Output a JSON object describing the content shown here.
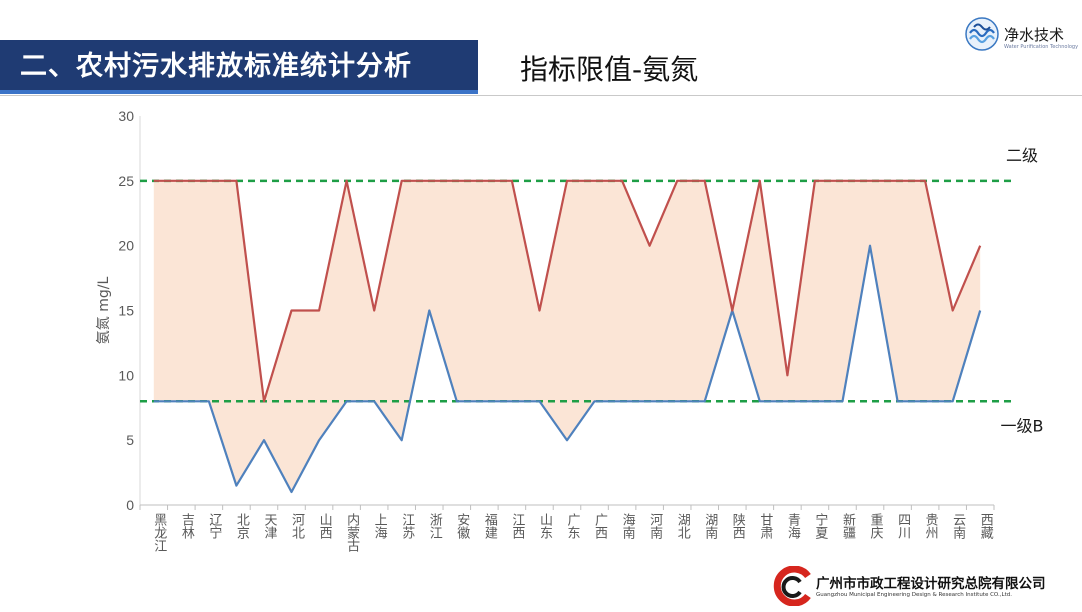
{
  "header": {
    "title": "二、农村污水排放标准统计分析",
    "subtitle": "指标限值-氨氮",
    "logo_script": "净水技术",
    "logo_sub": "Water Purification Technology"
  },
  "footer": {
    "org_name": "广州市市政工程设计研究总院有限公司",
    "org_name_en": "Guangzhou Municipal Engineering Design & Research Institute CO.,Ltd."
  },
  "colors": {
    "title_bar": "#1f3b73",
    "upper_line": "#c0504d",
    "lower_line": "#4f81bd",
    "fill": "#fbe5d6",
    "reference": "#1e9e46"
  },
  "chart_data": {
    "type": "line",
    "ylabel": "氨氮 mg/L",
    "xlabel": "",
    "ylim": [
      0,
      30
    ],
    "yticks": [
      0,
      5,
      10,
      15,
      20,
      25,
      30
    ],
    "grid": false,
    "categories": [
      "黑龙江",
      "吉林",
      "辽宁",
      "北京",
      "天津",
      "河北",
      "山西",
      "内蒙古",
      "上海",
      "江苏",
      "浙江",
      "安徽",
      "福建",
      "江西",
      "山东",
      "广东",
      "广西",
      "海南",
      "河南",
      "湖北",
      "湖南",
      "陕西",
      "甘肃",
      "青海",
      "宁夏",
      "新疆",
      "重庆",
      "四川",
      "贵州",
      "云南",
      "西藏"
    ],
    "series": [
      {
        "role": "upper",
        "values": [
          25,
          25,
          25,
          25,
          8,
          15,
          15,
          25,
          15,
          25,
          25,
          25,
          25,
          25,
          15,
          25,
          25,
          25,
          20,
          25,
          25,
          15,
          25,
          10,
          25,
          25,
          25,
          25,
          25,
          15,
          20
        ]
      },
      {
        "role": "lower",
        "values": [
          8,
          8,
          8,
          1.5,
          5,
          1,
          5,
          8,
          8,
          5,
          15,
          8,
          8,
          8,
          8,
          5,
          8,
          8,
          8,
          8,
          8,
          15,
          8,
          8,
          8,
          8,
          20,
          8,
          8,
          8,
          15
        ]
      }
    ],
    "reference_lines": [
      {
        "label": "二级",
        "value": 25
      },
      {
        "label": "一级B",
        "value": 8
      }
    ]
  }
}
